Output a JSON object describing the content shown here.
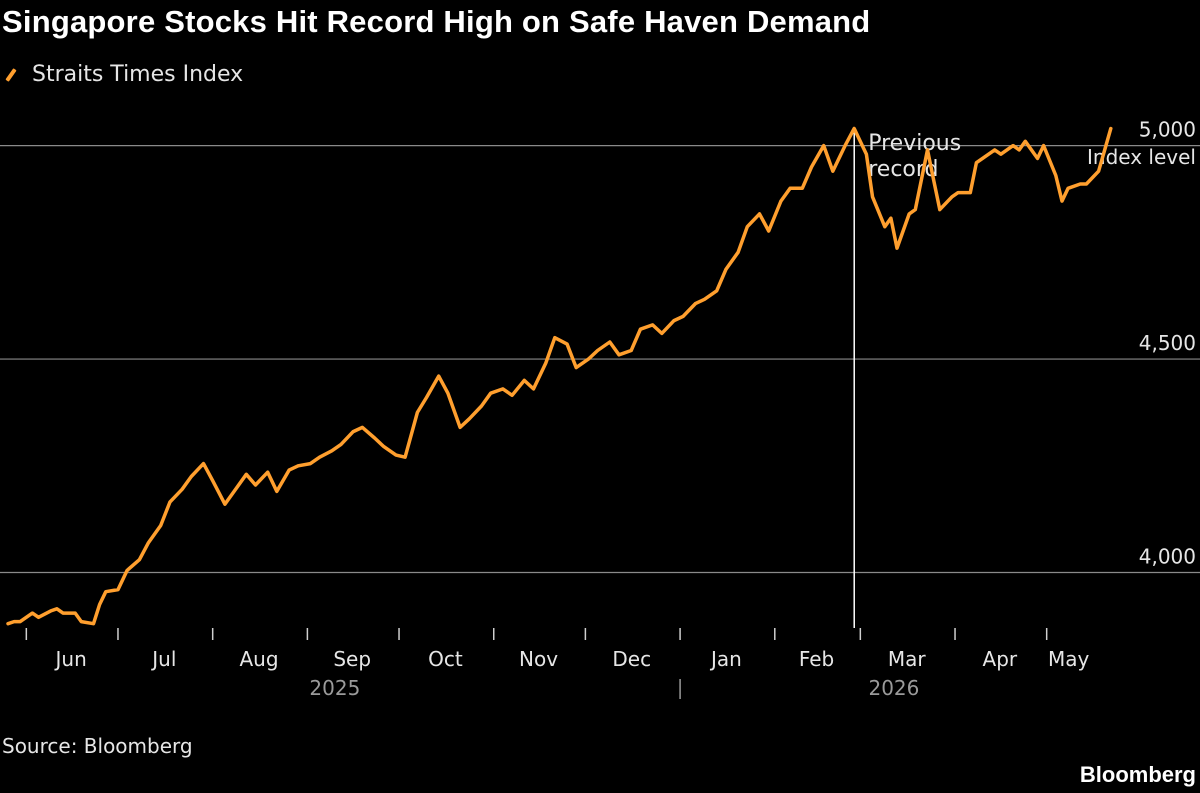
{
  "title": "Singapore Stocks Hit Record High on Safe Haven Demand",
  "source": "Source: Bloomberg",
  "brand": "Bloomberg",
  "colors": {
    "line": "#ff9f2e",
    "background": "#000000",
    "grid": "#8a8a8a",
    "marker": "#ffffff"
  },
  "chart_data": {
    "type": "line",
    "legend": "Straits Times Index",
    "ylabel": "Index level",
    "ylim": [
      3870,
      5060
    ],
    "yticks": [
      4000,
      4500,
      5000
    ],
    "ytick_labels": [
      "4,000",
      "4,500",
      "5,000"
    ],
    "xlim": [
      "2025-05-26",
      "2026-05-25"
    ],
    "xticks": [
      {
        "date": "2025-06-01",
        "label": "Jun"
      },
      {
        "date": "2025-07-01",
        "label": "Jul"
      },
      {
        "date": "2025-08-01",
        "label": "Aug"
      },
      {
        "date": "2025-09-01",
        "label": "Sep"
      },
      {
        "date": "2025-10-01",
        "label": "Oct"
      },
      {
        "date": "2025-11-01",
        "label": "Nov"
      },
      {
        "date": "2025-12-01",
        "label": "Dec"
      },
      {
        "date": "2026-01-01",
        "label": "Jan"
      },
      {
        "date": "2026-02-01",
        "label": "Feb"
      },
      {
        "date": "2026-03-01",
        "label": "Mar"
      },
      {
        "date": "2026-04-01",
        "label": "Apr"
      },
      {
        "date": "2026-05-01",
        "label": "May"
      }
    ],
    "year_labels": [
      {
        "date": "2025-09-10",
        "label": "2025"
      },
      {
        "date": "2026-03-12",
        "label": "2026"
      }
    ],
    "year_divider": "2026-01-01",
    "grid": "horizontal",
    "annotation": {
      "date": "2026-02-27",
      "text": [
        "Previous",
        "record"
      ]
    },
    "series": [
      {
        "name": "Straits Times Index",
        "x": [
          "2025-05-26",
          "2025-05-28",
          "2025-05-30",
          "2025-06-03",
          "2025-06-05",
          "2025-06-09",
          "2025-06-11",
          "2025-06-13",
          "2025-06-17",
          "2025-06-19",
          "2025-06-23",
          "2025-06-25",
          "2025-06-27",
          "2025-07-01",
          "2025-07-04",
          "2025-07-08",
          "2025-07-11",
          "2025-07-15",
          "2025-07-18",
          "2025-07-22",
          "2025-07-25",
          "2025-07-29",
          "2025-08-01",
          "2025-08-05",
          "2025-08-08",
          "2025-08-12",
          "2025-08-15",
          "2025-08-19",
          "2025-08-22",
          "2025-08-26",
          "2025-08-29",
          "2025-09-02",
          "2025-09-05",
          "2025-09-09",
          "2025-09-12",
          "2025-09-16",
          "2025-09-19",
          "2025-09-23",
          "2025-09-26",
          "2025-09-30",
          "2025-10-03",
          "2025-10-07",
          "2025-10-10",
          "2025-10-14",
          "2025-10-17",
          "2025-10-21",
          "2025-10-24",
          "2025-10-28",
          "2025-10-31",
          "2025-11-04",
          "2025-11-07",
          "2025-11-11",
          "2025-11-14",
          "2025-11-18",
          "2025-11-21",
          "2025-11-25",
          "2025-11-28",
          "2025-12-02",
          "2025-12-05",
          "2025-12-09",
          "2025-12-12",
          "2025-12-16",
          "2025-12-19",
          "2025-12-23",
          "2025-12-26",
          "2025-12-30",
          "2026-01-02",
          "2026-01-06",
          "2026-01-09",
          "2026-01-13",
          "2026-01-16",
          "2026-01-20",
          "2026-01-23",
          "2026-01-27",
          "2026-01-30",
          "2026-02-03",
          "2026-02-06",
          "2026-02-10",
          "2026-02-13",
          "2026-02-17",
          "2026-02-20",
          "2026-02-24",
          "2026-02-27",
          "2026-03-03",
          "2026-03-05",
          "2026-03-09",
          "2026-03-11",
          "2026-03-13",
          "2026-03-17",
          "2026-03-19",
          "2026-03-23",
          "2026-03-25",
          "2026-03-27",
          "2026-03-31",
          "2026-04-02",
          "2026-04-06",
          "2026-04-08",
          "2026-04-10",
          "2026-04-14",
          "2026-04-16",
          "2026-04-20",
          "2026-04-22",
          "2026-04-24",
          "2026-04-28",
          "2026-04-30",
          "2026-05-04",
          "2026-05-06",
          "2026-05-08",
          "2026-05-12",
          "2026-05-14",
          "2026-05-18",
          "2026-05-20",
          "2026-05-22"
        ],
        "y": [
          3880,
          3885,
          3885,
          3905,
          3895,
          3910,
          3915,
          3905,
          3905,
          3885,
          3880,
          3925,
          3955,
          3960,
          4005,
          4030,
          4070,
          4110,
          4165,
          4195,
          4225,
          4255,
          4215,
          4160,
          4190,
          4230,
          4205,
          4235,
          4190,
          4240,
          4250,
          4255,
          4270,
          4285,
          4300,
          4330,
          4340,
          4315,
          4295,
          4275,
          4270,
          4375,
          4410,
          4460,
          4420,
          4340,
          4360,
          4390,
          4420,
          4430,
          4415,
          4450,
          4430,
          4490,
          4550,
          4535,
          4480,
          4500,
          4520,
          4540,
          4510,
          4520,
          4570,
          4580,
          4560,
          4590,
          4600,
          4630,
          4640,
          4660,
          4710,
          4750,
          4810,
          4840,
          4800,
          4870,
          4900,
          4900,
          4950,
          5000,
          4940,
          5000,
          5040,
          4980,
          4880,
          4810,
          4830,
          4760,
          4840,
          4850,
          4990,
          4920,
          4850,
          4880,
          4890,
          4890,
          4960,
          4970,
          4990,
          4980,
          5000,
          4990,
          5010,
          4970,
          5000,
          4930,
          4870,
          4900,
          4910,
          4910,
          4940,
          4990,
          5040
        ]
      }
    ]
  }
}
